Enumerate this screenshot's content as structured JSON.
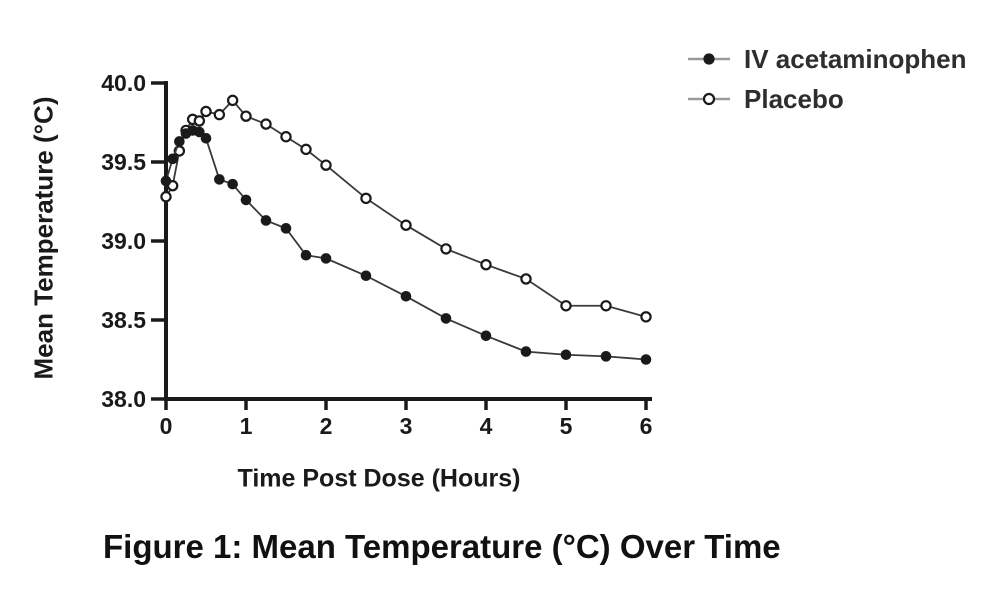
{
  "figure": {
    "caption": "Figure 1: Mean Temperature (°C) Over Time"
  },
  "chart_data": {
    "type": "line",
    "title": "",
    "xlabel": "Time Post Dose (Hours)",
    "ylabel": "Mean Temperature (°C)",
    "xlim": [
      0,
      6
    ],
    "ylim": [
      38.0,
      40.0
    ],
    "grid": false,
    "legend_position": "top-right",
    "xticks": [
      0,
      1,
      2,
      3,
      4,
      5,
      6
    ],
    "xtick_labels": [
      "0",
      "1",
      "2",
      "3",
      "4",
      "5",
      "6"
    ],
    "yticks": [
      40.0,
      39.5,
      39.0,
      38.5,
      38.0
    ],
    "ytick_labels": [
      "40.0",
      "39.5",
      "39.0",
      "38.5",
      "38.0"
    ],
    "x": [
      0,
      0.083,
      0.167,
      0.25,
      0.333,
      0.417,
      0.5,
      0.667,
      0.833,
      1,
      1.25,
      1.5,
      1.75,
      2,
      2.5,
      3,
      3.5,
      4,
      4.5,
      5,
      5.5,
      6
    ],
    "series": [
      {
        "name": "Placebo",
        "marker": "open-circle",
        "values": [
          39.28,
          39.35,
          39.57,
          39.7,
          39.77,
          39.76,
          39.82,
          39.8,
          39.89,
          39.79,
          39.74,
          39.66,
          39.58,
          39.48,
          39.27,
          39.1,
          38.95,
          38.85,
          38.76,
          38.59,
          38.59,
          38.52
        ]
      },
      {
        "name": "IV acetaminophen",
        "marker": "filled-circle",
        "values": [
          39.38,
          39.52,
          39.63,
          39.68,
          39.7,
          39.69,
          39.65,
          39.39,
          39.36,
          39.26,
          39.13,
          39.08,
          38.91,
          38.89,
          38.78,
          38.65,
          38.51,
          38.4,
          38.3,
          38.28,
          38.27,
          38.25
        ]
      }
    ],
    "colors": {
      "marker": "#1a1a1a",
      "line": "#3a3a3a",
      "axis": "#1a1a1a",
      "legend_line": "#9a9a9a",
      "background": "#ffffff"
    }
  }
}
